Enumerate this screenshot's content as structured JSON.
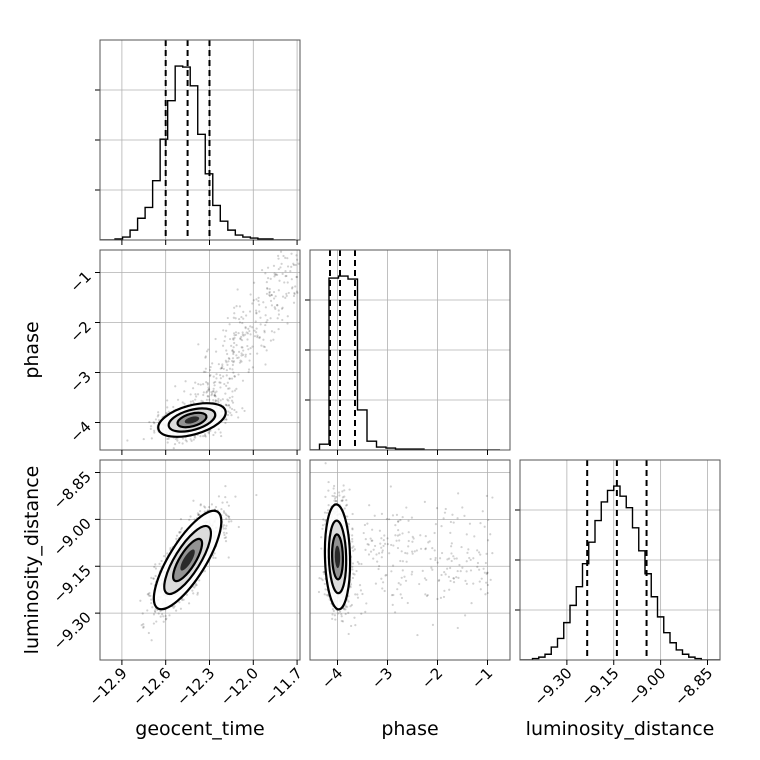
{
  "chart_data": {
    "type": "corner",
    "parameters": [
      {
        "label": "geocent_time",
        "range": [
          -13.05,
          -11.68
        ],
        "ticks": [
          -12.9,
          -12.6,
          -12.3,
          -12.0,
          -11.7
        ],
        "tick_labels": [
          "−12.9",
          "−12.6",
          "−12.3",
          "−12.0",
          "−11.7"
        ],
        "quantiles": [
          -12.6,
          -12.45,
          -12.3
        ],
        "histogram": {
          "edges": [
            -13.05,
            -12.9985,
            -12.947,
            -12.8955,
            -12.844,
            -12.7925,
            -12.741,
            -12.6895,
            -12.638,
            -12.5865,
            -12.535,
            -12.4835,
            -12.432,
            -12.3805,
            -12.329,
            -12.2775,
            -12.226,
            -12.1745,
            -12.123,
            -12.0715,
            -12.02,
            -11.9685,
            -11.917,
            -11.8655,
            -11.814,
            -11.7625,
            -11.711
          ],
          "counts": [
            0,
            0,
            1,
            3,
            10,
            22,
            33,
            60,
            102,
            141,
            176,
            175,
            156,
            107,
            67,
            35,
            19,
            10,
            5,
            3,
            2,
            1,
            1,
            0,
            0,
            0
          ]
        }
      },
      {
        "label": "phase",
        "range": [
          -4.55,
          -0.55
        ],
        "ticks": [
          -4,
          -3,
          -2,
          -1
        ],
        "tick_labels": [
          "−4",
          "−3",
          "−2",
          "−1"
        ],
        "quantiles": [
          -4.15,
          -3.95,
          -3.65
        ],
        "histogram": {
          "edges": [
            -4.55,
            -4.36,
            -4.17,
            -3.98,
            -3.79,
            -3.6,
            -3.41,
            -3.22,
            -3.03,
            -2.84,
            -2.65,
            -2.46,
            -2.27,
            -2.08,
            -1.89,
            -1.7,
            -1.51,
            -1.32,
            -1.13,
            -0.94,
            -0.75
          ],
          "counts": [
            0,
            6,
            176,
            178,
            175,
            41,
            9,
            3,
            2,
            1,
            1,
            1,
            0,
            0,
            0,
            0,
            0,
            0,
            0,
            0
          ]
        }
      },
      {
        "label": "luminosity_distance",
        "range": [
          -9.45,
          -8.81
        ],
        "ticks": [
          -9.3,
          -9.15,
          -9.0,
          -8.85
        ],
        "tick_labels": [
          "−9.30",
          "−9.15",
          "−9.00",
          "−8.85"
        ],
        "quantiles": [
          -9.235,
          -9.14,
          -9.045
        ],
        "histogram": {
          "edges": [
            -9.45,
            -9.43,
            -9.41,
            -9.39,
            -9.37,
            -9.35,
            -9.33,
            -9.31,
            -9.29,
            -9.27,
            -9.25,
            -9.23,
            -9.21,
            -9.19,
            -9.17,
            -9.15,
            -9.13,
            -9.11,
            -9.09,
            -9.07,
            -9.05,
            -9.03,
            -9.01,
            -8.99,
            -8.97,
            -8.95,
            -8.93,
            -8.91,
            -8.89,
            -8.87,
            -8.85,
            -8.83,
            -8.81
          ],
          "counts": [
            0,
            0,
            1,
            2,
            4,
            9,
            15,
            26,
            38,
            51,
            67,
            82,
            97,
            110,
            118,
            121,
            114,
            106,
            92,
            76,
            60,
            44,
            30,
            19,
            12,
            7,
            4,
            2,
            1,
            0,
            0,
            0
          ]
        }
      }
    ],
    "grid": true
  }
}
